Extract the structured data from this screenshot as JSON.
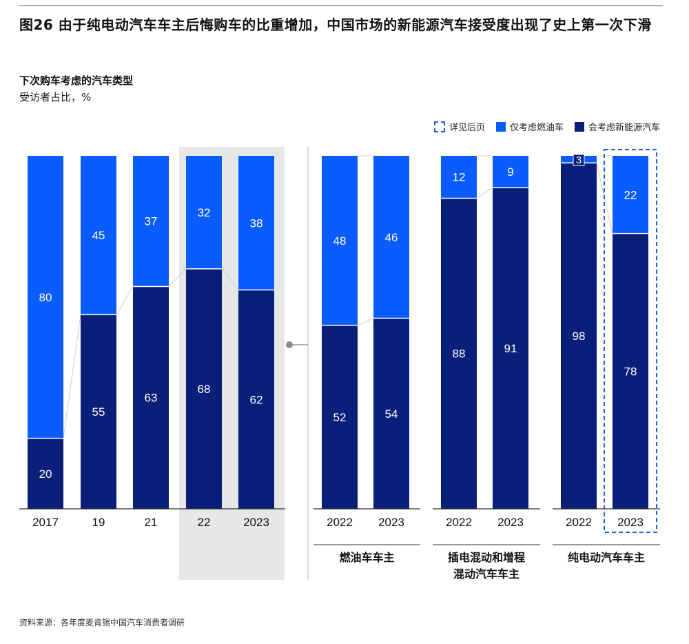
{
  "title": "图26 由于纯电动汽车车主后悔购车的比重增加，中国市场的新能源汽车接受度出现了史上第一次下滑",
  "subtitle": "下次购车考虑的汽车类型",
  "unit": "受访者占比，%",
  "legend": {
    "dashed": "详见后页",
    "ice": "仅考虑燃油车",
    "nev": "会考虑新能源汽车"
  },
  "source": "资料来源：各年度麦肯锡中国汽车消费者调研",
  "colors": {
    "ice": "#0b5cff",
    "nev": "#0a1f7a",
    "highlight": "#e6e7e9",
    "dash": "#1f5fd6"
  },
  "chart_data": {
    "type": "bar",
    "stacked": true,
    "ylim": [
      0,
      100
    ],
    "series_names": [
      "会考虑新能源汽车",
      "仅考虑燃油车"
    ],
    "groups": [
      {
        "label": "",
        "categories": [
          "2017",
          "19",
          "21",
          "22",
          "2023"
        ],
        "nev": [
          20,
          55,
          63,
          68,
          62
        ],
        "ice": [
          80,
          45,
          37,
          32,
          38
        ]
      },
      {
        "label": "燃油车车主",
        "categories": [
          "2022",
          "2023"
        ],
        "nev": [
          52,
          54
        ],
        "ice": [
          48,
          46
        ]
      },
      {
        "label": "插电混动和增程\n混动汽车车主",
        "categories": [
          "2022",
          "2023"
        ],
        "nev": [
          88,
          91
        ],
        "ice": [
          12,
          9
        ]
      },
      {
        "label": "纯电动汽车车主",
        "categories": [
          "2022",
          "2023"
        ],
        "nev": [
          98,
          78
        ],
        "ice": [
          3,
          22
        ]
      }
    ]
  }
}
